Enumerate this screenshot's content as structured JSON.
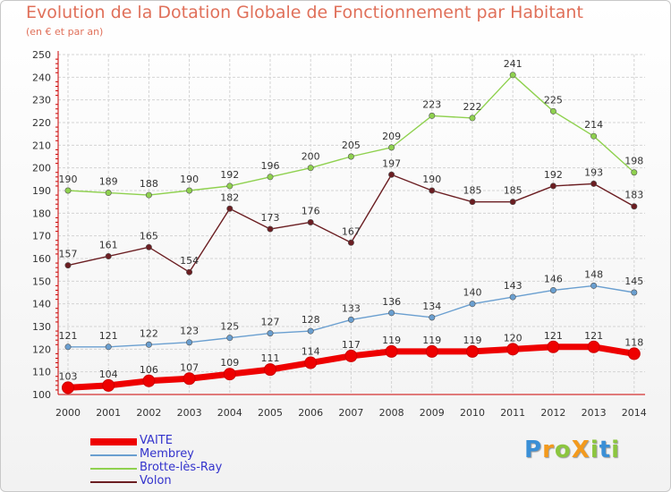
{
  "header": {
    "title": "Evolution de la Dotation Globale de Fonctionnement par Habitant",
    "subtitle": "(en € et par an)"
  },
  "brand": {
    "text": "ProXiti",
    "letters": [
      "P",
      "r",
      "o",
      "X",
      "i",
      "t",
      "i"
    ],
    "letter_colors": [
      "#3a8fd6",
      "#f39a1d",
      "#8cc63f",
      "#f39a1d",
      "#8cc63f",
      "#3a8fd6",
      "#8cc63f"
    ]
  },
  "chart_data": {
    "type": "line",
    "x": [
      "2000",
      "2001",
      "2002",
      "2003",
      "2004",
      "2005",
      "2006",
      "2007",
      "2008",
      "2009",
      "2010",
      "2011",
      "2012",
      "2013",
      "2014"
    ],
    "ylim": [
      100,
      250
    ],
    "yticks": [
      "100",
      "110",
      "120",
      "130",
      "140",
      "150",
      "160",
      "170",
      "180",
      "190",
      "200",
      "210",
      "220",
      "230",
      "240",
      "250"
    ],
    "grid": true,
    "legend_position": "bottom-left",
    "series": [
      {
        "name": "VAITE",
        "color": "#ee0000",
        "emphasis": true,
        "values": [
          103,
          104,
          106,
          107,
          109,
          111,
          114,
          117,
          119,
          119,
          119,
          120,
          121,
          121,
          118
        ]
      },
      {
        "name": "Membrey",
        "color": "#6a9fd0",
        "emphasis": false,
        "values": [
          121,
          121,
          122,
          123,
          125,
          127,
          128,
          133,
          136,
          134,
          140,
          143,
          146,
          148,
          145
        ]
      },
      {
        "name": "Brotte-lès-Ray",
        "color": "#8fd14f",
        "emphasis": false,
        "values": [
          190,
          189,
          188,
          190,
          192,
          196,
          200,
          205,
          209,
          223,
          222,
          241,
          225,
          214,
          198
        ]
      },
      {
        "name": "Volon",
        "color": "#6b1e22",
        "emphasis": false,
        "values": [
          157,
          161,
          165,
          154,
          182,
          173,
          176,
          167,
          197,
          190,
          185,
          185,
          192,
          193,
          183
        ]
      }
    ]
  }
}
